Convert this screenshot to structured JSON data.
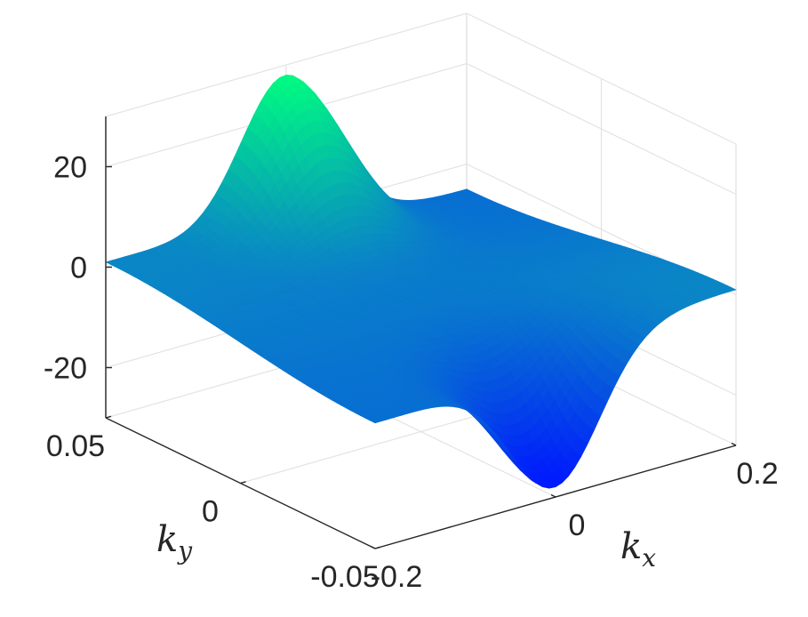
{
  "chart_data": {
    "type": "surface",
    "title": "",
    "xlabel": {
      "base": "k",
      "sub": "x"
    },
    "ylabel": {
      "base": "k",
      "sub": "y"
    },
    "zlabel": "",
    "xlim": [
      -0.2,
      0.2
    ],
    "ylim": [
      -0.05,
      0.05
    ],
    "zlim": [
      -30,
      30
    ],
    "xticks": [
      {
        "value": -0.2,
        "label": "-0.2"
      },
      {
        "value": 0,
        "label": "0"
      },
      {
        "value": 0.2,
        "label": "0.2"
      }
    ],
    "yticks": [
      {
        "value": -0.05,
        "label": "-0.05"
      },
      {
        "value": 0,
        "label": "0"
      },
      {
        "value": 0.05,
        "label": "0.05"
      }
    ],
    "zticks": [
      {
        "value": -20,
        "label": "-20"
      },
      {
        "value": 0,
        "label": "0"
      },
      {
        "value": 20,
        "label": "20"
      }
    ],
    "surface": {
      "peak": {
        "x": 0.0,
        "y": 0.05,
        "z": 28
      },
      "trough": {
        "x": 0.0,
        "y": -0.05,
        "z": -28
      },
      "edge_level_z": -2
    },
    "colormap": {
      "low": "#0019ff",
      "mid": "#0a82c8",
      "high": "#00fa82"
    },
    "grid": true
  }
}
